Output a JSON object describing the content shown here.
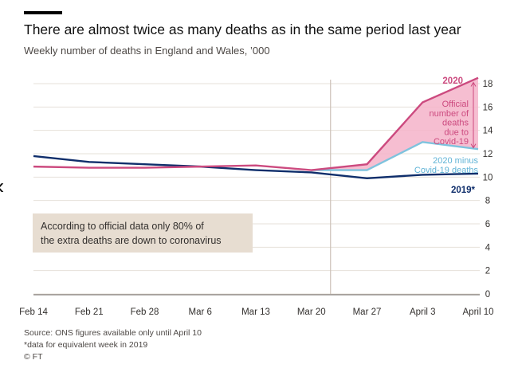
{
  "title": "There are almost twice as many deaths as in the same period last year",
  "subtitle": "Weekly number of deaths in England and Wales, ’000",
  "note_lines": [
    "According to official data only 80% of",
    "the extra deaths are down to coronavirus"
  ],
  "footer": {
    "source": "Source: ONS figures available only until April 10",
    "footnote": "*data for equivalent week in 2019",
    "credit": "© FT"
  },
  "chart_data": {
    "type": "line",
    "categories": [
      "Feb 14",
      "Feb 21",
      "Feb 28",
      "Mar 6",
      "Mar 13",
      "Mar 20",
      "Mar 27",
      "April 3",
      "April 10"
    ],
    "ylim": [
      0,
      18
    ],
    "yticks": [
      0,
      2,
      4,
      6,
      8,
      10,
      12,
      14,
      16,
      18
    ],
    "marker_after_category": 5,
    "series": [
      {
        "name": "2019*",
        "color": "#0f2e6b",
        "values": [
          11.8,
          11.3,
          11.1,
          10.9,
          10.6,
          10.4,
          9.9,
          10.2,
          10.3
        ]
      },
      {
        "name": "2020",
        "color": "#cc4a7f",
        "values": [
          10.9,
          10.8,
          10.8,
          10.9,
          11.0,
          10.6,
          11.1,
          16.4,
          18.5
        ]
      },
      {
        "name": "2020 minus Covid-19 deaths",
        "color": "#7ec3de",
        "values": [
          null,
          null,
          null,
          null,
          null,
          10.6,
          10.6,
          13.0,
          12.4
        ]
      }
    ],
    "annotations": {
      "label_2020": "2020",
      "label_2019": "2019*",
      "label_minus": [
        "2020 minus",
        "Covid-19 deaths"
      ],
      "label_official": [
        "Official",
        "number of",
        "deaths",
        "due to",
        "Covid-19"
      ]
    },
    "colors": {
      "shade": "#f4b3c9",
      "bracket": "#cc4a7f",
      "grid": "#e6e0da",
      "marker": "#ccc1b7"
    }
  }
}
